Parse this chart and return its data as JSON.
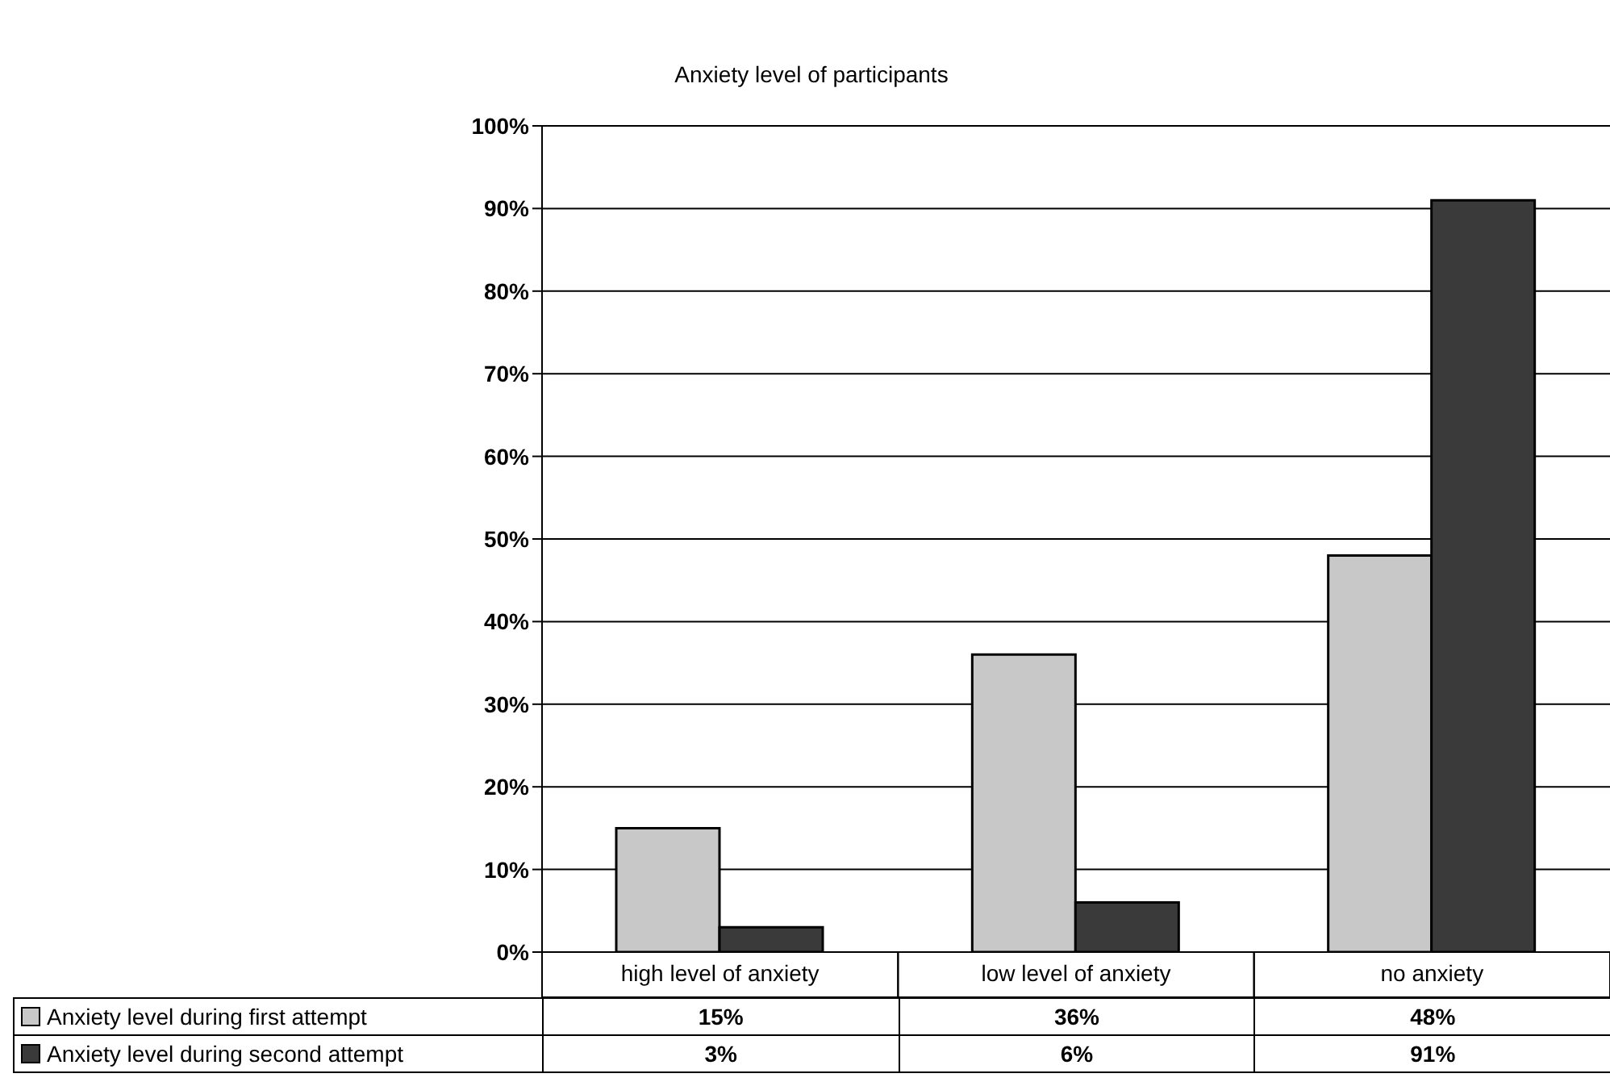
{
  "chart_data": {
    "type": "bar",
    "title": "Anxiety level of participants",
    "categories": [
      "high level of anxiety",
      "low level of anxiety",
      "no anxiety"
    ],
    "series": [
      {
        "name": "Anxiety level during first attempt",
        "color": "#c8c8c8",
        "values": [
          15,
          36,
          48
        ],
        "value_labels": [
          "15%",
          "36%",
          "48%"
        ]
      },
      {
        "name": "Anxiety level during second attempt",
        "color": "#3a3a3a",
        "values": [
          3,
          6,
          91
        ],
        "value_labels": [
          "3%",
          "6%",
          "91%"
        ]
      }
    ],
    "ylim": [
      0,
      100
    ],
    "yticks": [
      {
        "value": 0,
        "label": "0%"
      },
      {
        "value": 10,
        "label": "10%"
      },
      {
        "value": 20,
        "label": "20%"
      },
      {
        "value": 30,
        "label": "30%"
      },
      {
        "value": 40,
        "label": "40%"
      },
      {
        "value": 50,
        "label": "50%"
      },
      {
        "value": 60,
        "label": "60%"
      },
      {
        "value": 70,
        "label": "70%"
      },
      {
        "value": 80,
        "label": "80%"
      },
      {
        "value": 90,
        "label": "90%"
      },
      {
        "value": 100,
        "label": "100%"
      }
    ],
    "grid": "y",
    "legend": "bottom left"
  }
}
